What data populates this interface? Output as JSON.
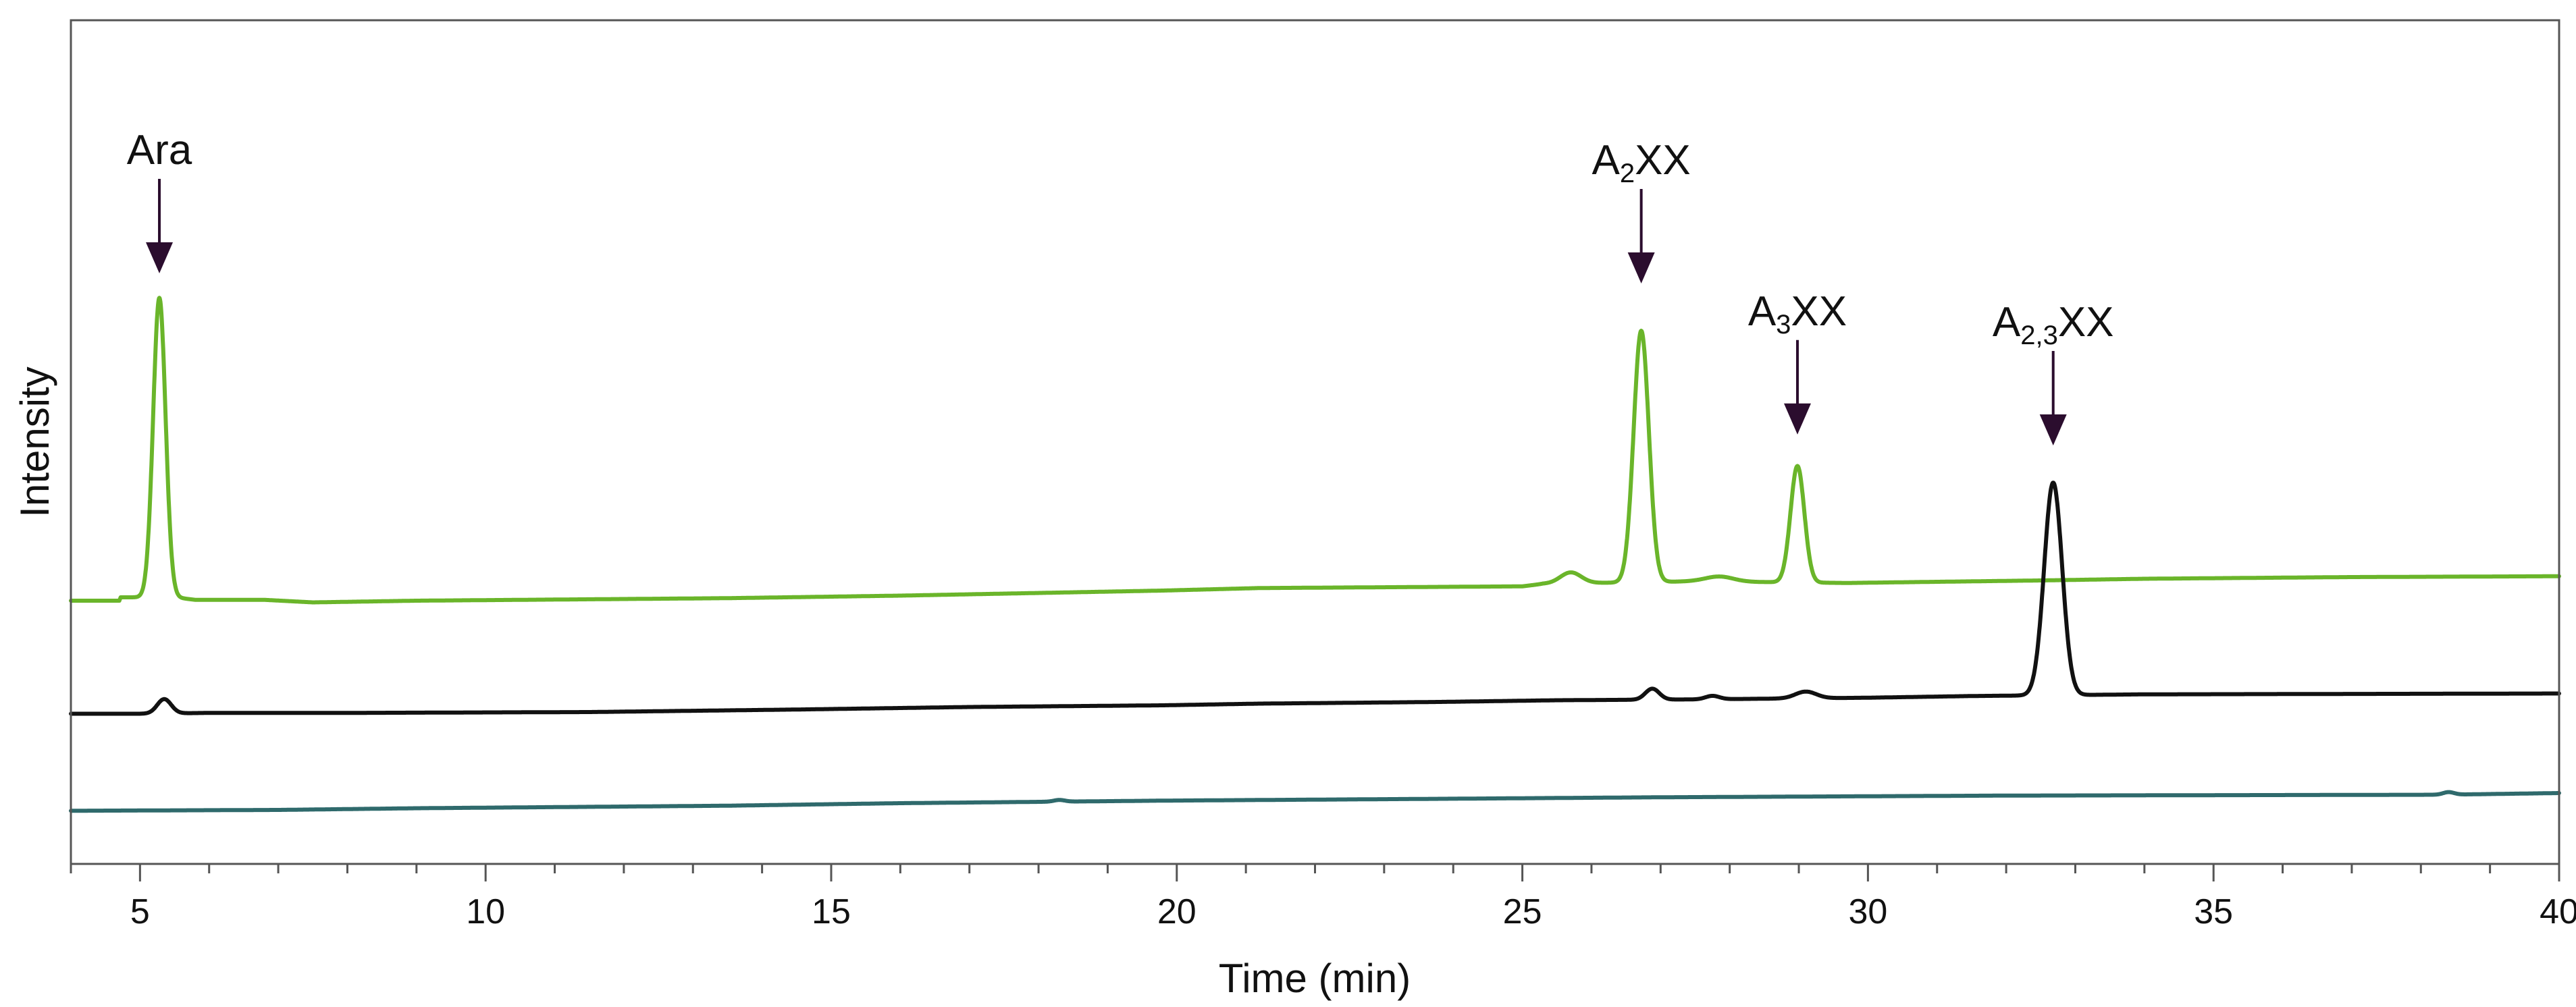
{
  "chart_data": {
    "type": "line",
    "title": "",
    "xlabel": "Time (min)",
    "ylabel": "Intensity",
    "xlim": [
      4,
      40
    ],
    "ylim": [
      0,
      100
    ],
    "grid": false,
    "legend": "none",
    "x_ticks": [
      5,
      10,
      15,
      20,
      25,
      30,
      35,
      40
    ],
    "series": [
      {
        "color": "#6ab52a",
        "baseline": [
          [
            4,
            31.2
          ],
          [
            4.7,
            31.2
          ],
          [
            4.72,
            31.6
          ],
          [
            5.5,
            31.6
          ],
          [
            5.8,
            31.3
          ],
          [
            6.8,
            31.3
          ],
          [
            7.5,
            31.0
          ],
          [
            9.0,
            31.2
          ],
          [
            13.5,
            31.5
          ],
          [
            16.0,
            31.8
          ],
          [
            19.8,
            32.4
          ],
          [
            21.2,
            32.7
          ],
          [
            25.0,
            32.9
          ],
          [
            25.3,
            33.2
          ],
          [
            27.5,
            33.5
          ],
          [
            29.7,
            33.3
          ],
          [
            32.5,
            33.6
          ],
          [
            34.0,
            33.8
          ],
          [
            37.0,
            34.0
          ],
          [
            40,
            34.1
          ]
        ],
        "peaks": [
          {
            "center": 5.28,
            "width": 0.09,
            "height": 35.5
          },
          {
            "center": 26.72,
            "width": 0.11,
            "height": 29.8
          },
          {
            "center": 28.98,
            "width": 0.1,
            "height": 13.8
          },
          {
            "center": 25.7,
            "width": 0.15,
            "height": 1.3
          },
          {
            "center": 27.85,
            "width": 0.2,
            "height": 0.6
          }
        ]
      },
      {
        "color": "#111111",
        "baseline": [
          [
            4,
            17.8
          ],
          [
            4.6,
            17.8
          ],
          [
            5.0,
            17.8
          ],
          [
            6.0,
            17.9
          ],
          [
            8.0,
            17.9
          ],
          [
            11.5,
            18.0
          ],
          [
            14.5,
            18.3
          ],
          [
            17.0,
            18.6
          ],
          [
            19.8,
            18.8
          ],
          [
            21.2,
            19.0
          ],
          [
            23.8,
            19.2
          ],
          [
            25.5,
            19.4
          ],
          [
            27.5,
            19.5
          ],
          [
            30.0,
            19.7
          ],
          [
            31.5,
            19.9
          ],
          [
            34.0,
            20.1
          ],
          [
            40,
            20.2
          ]
        ],
        "peaks": [
          {
            "center": 5.35,
            "width": 0.1,
            "height": 1.7
          },
          {
            "center": 26.88,
            "width": 0.1,
            "height": 1.3
          },
          {
            "center": 29.1,
            "width": 0.15,
            "height": 0.8
          },
          {
            "center": 27.75,
            "width": 0.1,
            "height": 0.4
          },
          {
            "center": 32.68,
            "width": 0.13,
            "height": 25.2
          }
        ]
      },
      {
        "color": "#2f6a6c",
        "baseline": [
          [
            4,
            6.3
          ],
          [
            7.0,
            6.4
          ],
          [
            9.0,
            6.6
          ],
          [
            13.5,
            6.9
          ],
          [
            16.0,
            7.2
          ],
          [
            19.8,
            7.5
          ],
          [
            23.5,
            7.7
          ],
          [
            27.0,
            7.9
          ],
          [
            29.5,
            8.0
          ],
          [
            32.0,
            8.1
          ],
          [
            38.3,
            8.2
          ],
          [
            40,
            8.4
          ]
        ],
        "peaks": [
          {
            "center": 18.3,
            "width": 0.08,
            "height": 0.2
          },
          {
            "center": 38.4,
            "width": 0.08,
            "height": 0.3
          }
        ]
      }
    ],
    "annotations": [
      {
        "base": "Ara",
        "sub": "",
        "suffix": "",
        "x": 5.28,
        "arrow_tip_y": 70.0
      },
      {
        "base": "A",
        "sub": "2",
        "suffix": "XX",
        "x": 26.72,
        "arrow_tip_y": 68.8
      },
      {
        "base": "A",
        "sub": "3",
        "suffix": "XX",
        "x": 28.98,
        "arrow_tip_y": 50.9
      },
      {
        "base": "A",
        "sub": "2,3",
        "suffix": "XX",
        "x": 32.68,
        "arrow_tip_y": 49.6
      }
    ],
    "annotation_color": "#2b0d2e"
  }
}
